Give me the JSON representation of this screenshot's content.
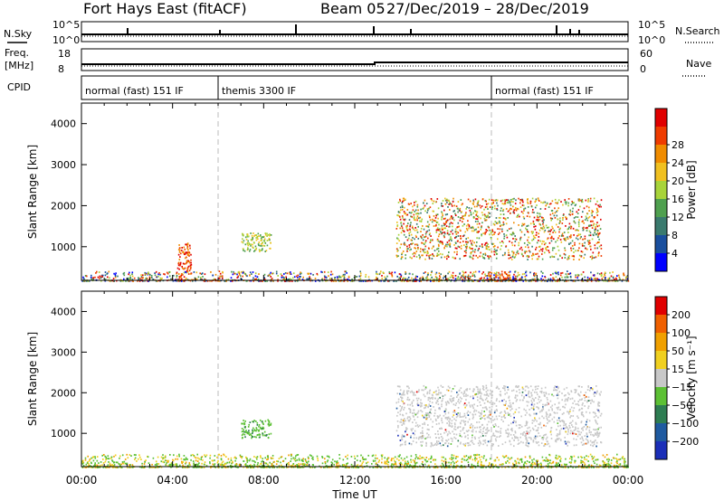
{
  "header": {
    "title": "Fort Hays East (fitACF)",
    "beam": "Beam 05",
    "dates": "27/Dec/2019 – 28/Dec/2019"
  },
  "strip_labels": {
    "nsky": "N.Sky",
    "nsearch": "N.Search",
    "freq_line1": "Freq.",
    "freq_line2": "[MHz]",
    "nave": "Nave",
    "cpid": "CPID"
  },
  "noise_axis": {
    "left_top": "10^5",
    "left_bottom": "10^0",
    "right_top": "10^5",
    "right_bottom": "10^0"
  },
  "freq_axis": {
    "left_top": "18",
    "left_bottom": "8",
    "right_top": "60",
    "right_bottom": "0"
  },
  "cpid_segments": [
    {
      "label": "normal (fast) 151 IF",
      "start_hr": 0
    },
    {
      "label": "themis 3300 IF",
      "start_hr": 6
    },
    {
      "label": "normal (fast) 151 IF",
      "start_hr": 18
    }
  ],
  "time_axis": {
    "label": "Time UT",
    "ticks": [
      "00:00",
      "04:00",
      "08:00",
      "12:00",
      "16:00",
      "20:00",
      "00:00"
    ]
  },
  "panels": {
    "power": {
      "ylabel": "Slant Range [km]",
      "yticks": [
        "1000",
        "2000",
        "3000",
        "4000"
      ],
      "colorbar_label": "Power [dB]",
      "colorbar_ticks": [
        "4",
        "8",
        "12",
        "16",
        "20",
        "24",
        "28"
      ],
      "colorbar_colors": [
        "#0000ff",
        "#1a4f9e",
        "#3a7a6e",
        "#4fa04f",
        "#a8d43a",
        "#f0c020",
        "#f08c00",
        "#ef3c00",
        "#e00000"
      ]
    },
    "velocity": {
      "ylabel": "Slant Range [km]",
      "yticks": [
        "1000",
        "2000",
        "3000",
        "4000"
      ],
      "colorbar_label": "Velocity [m s⁻¹]",
      "colorbar_ticks": [
        "200",
        "100",
        "50",
        "15",
        "−15",
        "−50",
        "−100",
        "−200"
      ],
      "colorbar_colors": [
        "#1b2fb8",
        "#1f5aa0",
        "#2e7d52",
        "#5cc034",
        "#c8c8c8",
        "#f0d020",
        "#f0a000",
        "#f06000",
        "#e00000"
      ]
    }
  },
  "chart_data": {
    "type": "heatmap",
    "x_range_hr": [
      0,
      24
    ],
    "y_range_km": [
      180,
      4500
    ],
    "dashed_lines_hr": [
      6,
      18
    ],
    "power_regions": [
      {
        "t0": 0.0,
        "t1": 24.0,
        "r0": 180,
        "r1": 420,
        "color": "mixed"
      },
      {
        "t0": 4.2,
        "t1": 4.8,
        "r0": 200,
        "r1": 1100,
        "color": "red/orange"
      },
      {
        "t0": 7.0,
        "t1": 8.3,
        "r0": 900,
        "r1": 1350,
        "color": "green/yellow"
      },
      {
        "t0": 13.8,
        "t1": 22.8,
        "r0": 700,
        "r1": 2200,
        "color": "red/orange/green"
      },
      {
        "t0": 17.8,
        "t1": 18.8,
        "r0": 200,
        "r1": 400,
        "color": "orange"
      }
    ],
    "velocity_regions": [
      {
        "t0": 0.0,
        "t1": 24.0,
        "r0": 180,
        "r1": 500,
        "color": "green/yellow"
      },
      {
        "t0": 7.0,
        "t1": 8.3,
        "r0": 900,
        "r1": 1350,
        "color": "green"
      },
      {
        "t0": 13.8,
        "t1": 22.8,
        "r0": 700,
        "r1": 2200,
        "color": "grey"
      }
    ]
  }
}
